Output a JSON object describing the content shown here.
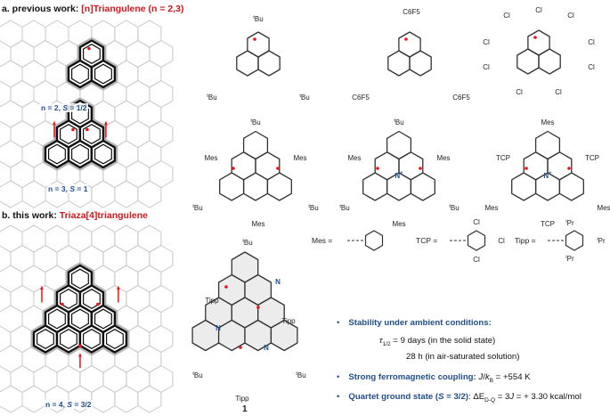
{
  "panel_a": {
    "prefix": "a. previous work: ",
    "title": "[n]Triangulene (n = 2,3)",
    "label_n2": {
      "n": "n = 2, ",
      "s_sym": "S",
      "s_val": " = 1/2"
    },
    "label_n3": {
      "n": "n = 3, ",
      "s_sym": "S",
      "s_val": " = 1"
    }
  },
  "panel_b": {
    "prefix": "b. this work: ",
    "title": "Triaza[4]triangulene",
    "label_n4": {
      "n": "n = 4, ",
      "s_sym": "S",
      "s_val": " = 3/2"
    },
    "compound_number": "1"
  },
  "definitions": {
    "mes": "Mes =",
    "tcp": "TCP =",
    "tipp": "Tipp =",
    "cl": "Cl",
    "ipr": {
      "sup": "i",
      "text": "Pr"
    }
  },
  "molecules": [
    {
      "labels": [
        {
          "sup": "t",
          "text": "Bu"
        },
        {
          "sup": "t",
          "text": "Bu"
        },
        {
          "sup": "t",
          "text": "Bu"
        }
      ]
    },
    {
      "labels": [
        {
          "text": "C6F5"
        },
        {
          "text": "C6F5"
        },
        {
          "text": "C6F5"
        }
      ]
    },
    {
      "labels": [
        {
          "text": "Cl"
        },
        {
          "text": "Cl"
        },
        {
          "text": "Cl"
        },
        {
          "text": "Cl"
        },
        {
          "text": "Cl"
        },
        {
          "text": "Cl"
        },
        {
          "text": "Cl"
        },
        {
          "text": "Cl"
        },
        {
          "text": "Cl"
        }
      ]
    },
    {
      "labels": [
        {
          "sup": "t",
          "text": "Bu"
        },
        {
          "text": "Mes"
        },
        {
          "text": "Mes"
        },
        {
          "sup": "t",
          "text": "Bu"
        },
        {
          "sup": "t",
          "text": "Bu"
        },
        {
          "text": "Mes"
        }
      ]
    },
    {
      "labels": [
        {
          "sup": "t",
          "text": "Bu"
        },
        {
          "text": "Mes"
        },
        {
          "text": "Mes"
        },
        {
          "sup": "t",
          "text": "Bu"
        },
        {
          "sup": "t",
          "text": "Bu"
        },
        {
          "text": "Mes"
        },
        {
          "text": "N",
          "sup2": "+"
        }
      ]
    },
    {
      "labels": [
        {
          "text": "Mes"
        },
        {
          "text": "TCP"
        },
        {
          "text": "TCP"
        },
        {
          "text": "Mes"
        },
        {
          "text": "Mes"
        },
        {
          "text": "TCP"
        },
        {
          "text": "N",
          "sup2": "+"
        }
      ]
    },
    {
      "labels": [
        {
          "sup": "t",
          "text": "Bu"
        },
        {
          "text": "Tipp"
        },
        {
          "text": "Tipp"
        },
        {
          "sup": "t",
          "text": "Bu"
        },
        {
          "sup": "t",
          "text": "Bu"
        },
        {
          "text": "Tipp"
        },
        {
          "text": "N"
        },
        {
          "text": "N"
        },
        {
          "text": "N"
        }
      ]
    }
  ],
  "bullets": [
    {
      "head": "Stability under ambient conditions:"
    },
    {
      "sym": "τ",
      "sub": "1/2",
      "text": " = 9 days (in the solid state)"
    },
    {
      "text": "28 h (in air-saturated solution)"
    },
    {
      "head": "Strong ferromagnetic coupling: ",
      "j": "J",
      "slash": "/",
      "k": "k",
      "ksub": "B",
      "text": " = +554 K"
    },
    {
      "head": "Quartet ground state (",
      "s": "S",
      "head2": " = 3/2)",
      "colon": ":",
      "de": " ΔE",
      "desub": "D-Q",
      "text1": " = 3",
      "j": "J",
      "text2": " = + 3.30 kcal/mol"
    }
  ],
  "colors": {
    "radical": "#e8141a",
    "title_red": "#d0181b",
    "accent_blue": "#1f4e8c",
    "nitrogen": "#1f4e8c",
    "grid": "#c8c8c8"
  }
}
